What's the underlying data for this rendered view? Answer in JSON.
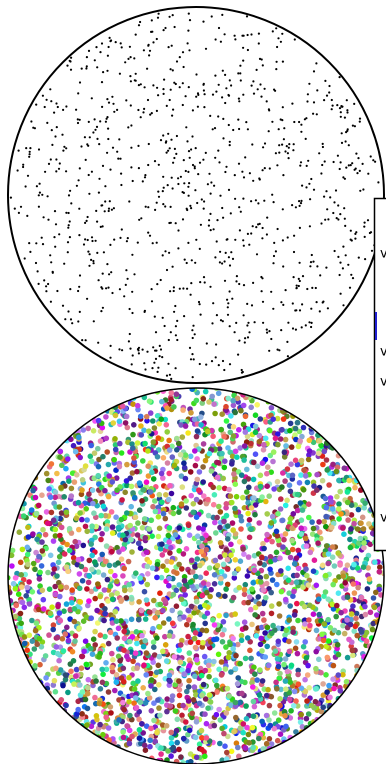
{
  "panel": {
    "labels": [
      "v",
      "v",
      "v",
      "v"
    ]
  }
}
